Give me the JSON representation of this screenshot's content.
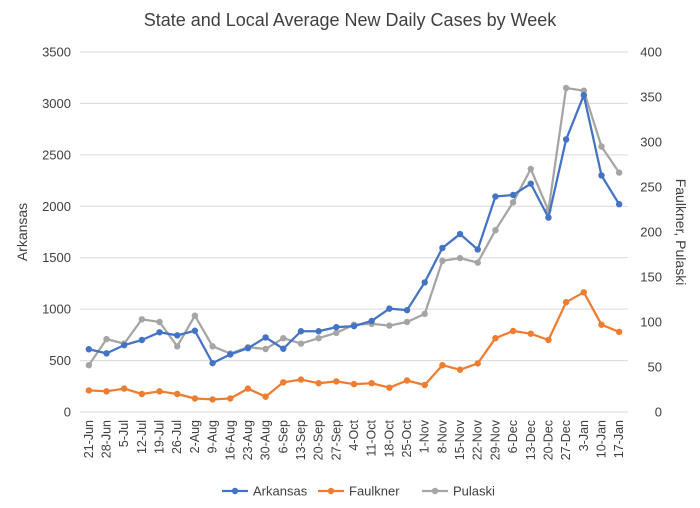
{
  "chart_data": {
    "type": "line",
    "title": "State and Local Average New Daily Cases by Week",
    "ylabel": "Arkansas",
    "y2label": "Faulkner, Pulaski",
    "ylim": [
      0,
      3500
    ],
    "y2lim": [
      0,
      400
    ],
    "yticks": [
      "0",
      "500",
      "1000",
      "1500",
      "2000",
      "2500",
      "3000",
      "3500"
    ],
    "y2ticks": [
      "0",
      "50",
      "100",
      "150",
      "200",
      "250",
      "300",
      "350",
      "400"
    ],
    "grid": true,
    "legend_position": "bottom",
    "categories": [
      "21-Jun",
      "28-Jun",
      "5-Jul",
      "12-Jul",
      "19-Jul",
      "26-Jul",
      "2-Aug",
      "9-Aug",
      "16-Aug",
      "23-Aug",
      "30-Aug",
      "6-Sep",
      "13-Sep",
      "20-Sep",
      "27-Sep",
      "4-Oct",
      "11-Oct",
      "18-Oct",
      "25-Oct",
      "1-Nov",
      "8-Nov",
      "15-Nov",
      "22-Nov",
      "29-Nov",
      "6-Dec",
      "13-Dec",
      "20-Dec",
      "27-Dec",
      "3-Jan",
      "10-Jan",
      "17-Jan"
    ],
    "series": [
      {
        "name": "Arkansas",
        "axis": "left",
        "color": "#4472c4",
        "values": [
          610,
          570,
          650,
          700,
          775,
          745,
          790,
          475,
          560,
          620,
          725,
          615,
          785,
          785,
          825,
          835,
          885,
          1005,
          990,
          1260,
          1595,
          1730,
          1580,
          2095,
          2110,
          2220,
          1890,
          2650,
          3080,
          2300,
          2020
        ]
      },
      {
        "name": "Faulkner",
        "axis": "right",
        "color": "#ed7d31",
        "values": [
          24,
          23,
          26,
          20,
          23,
          20,
          15,
          14,
          15,
          26,
          17,
          33,
          36,
          32,
          34,
          31,
          32,
          27,
          35,
          30,
          52,
          47,
          54,
          82,
          90,
          87,
          80,
          122,
          133,
          97,
          89
        ]
      },
      {
        "name": "Pulaski",
        "axis": "right",
        "color": "#a5a5a5",
        "values": [
          52,
          81,
          76,
          103,
          100,
          73,
          107,
          73,
          65,
          72,
          70,
          82,
          76,
          82,
          88,
          97,
          98,
          96,
          100,
          109,
          168,
          171,
          166,
          202,
          233,
          270,
          224,
          360,
          357,
          295,
          266
        ]
      }
    ]
  }
}
